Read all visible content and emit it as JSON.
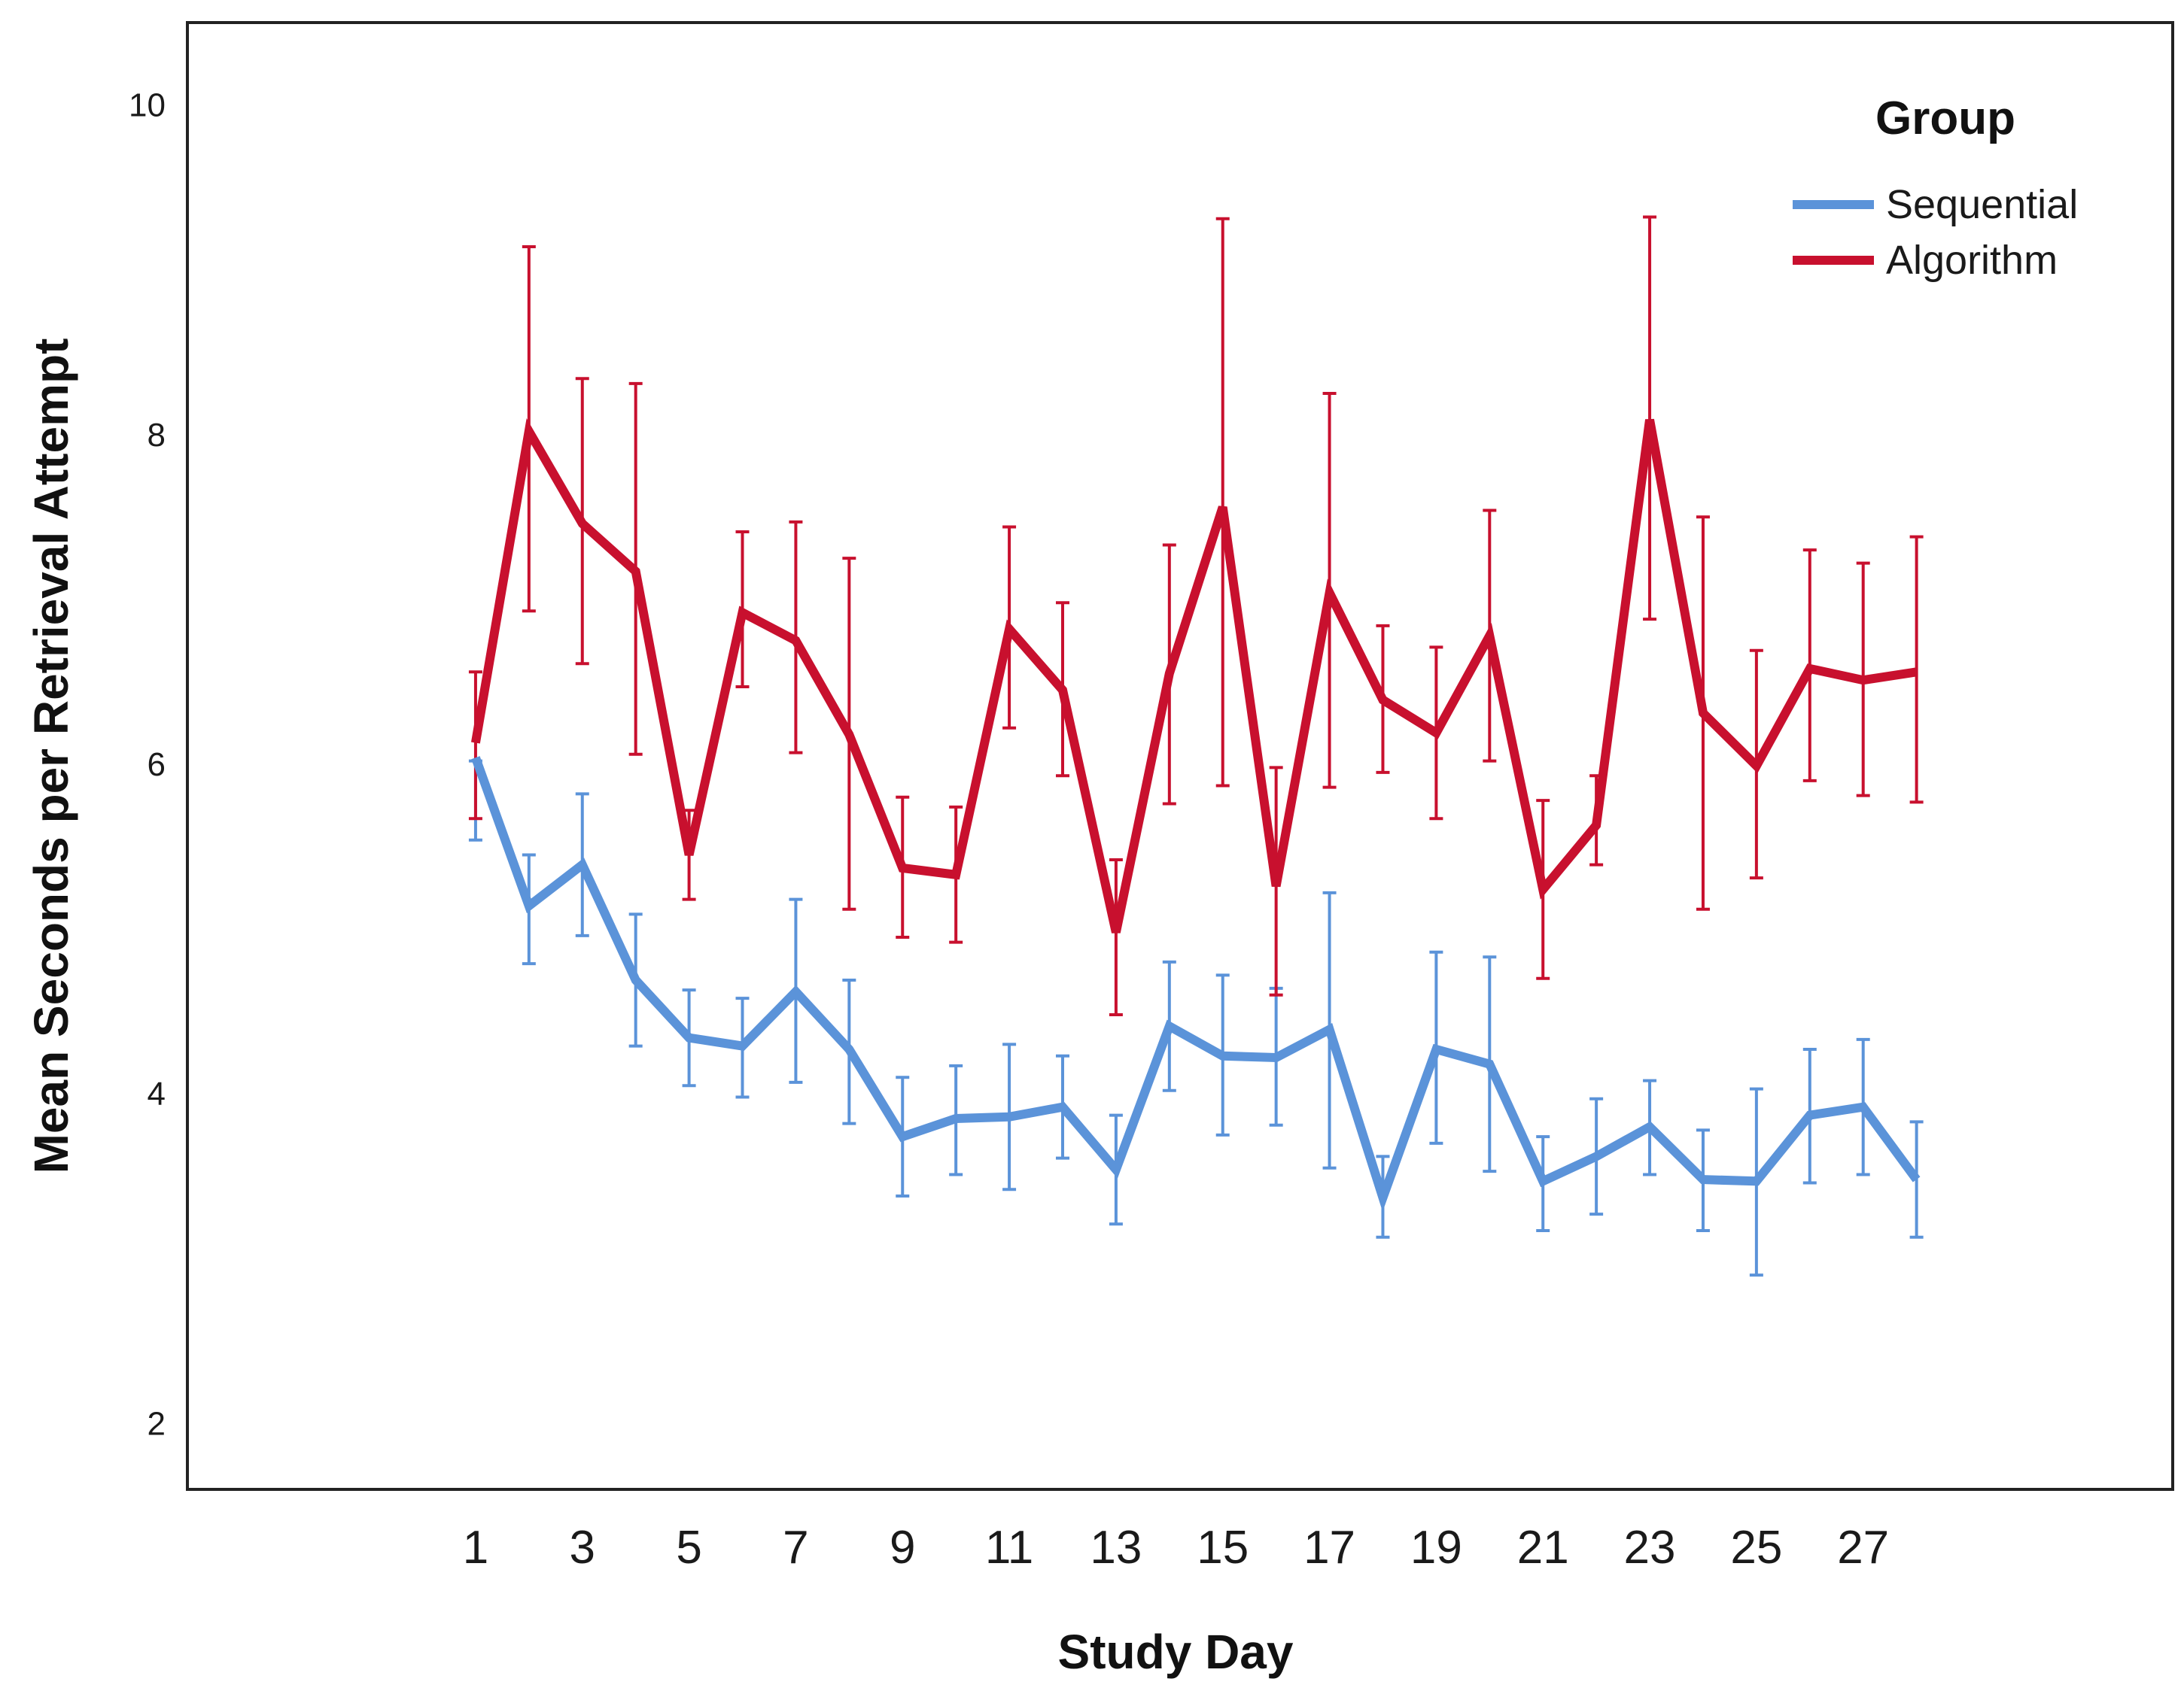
{
  "chart_data": {
    "type": "line",
    "title": "",
    "xlabel": "Study Day",
    "ylabel": "Mean Seconds per Retrieval Attempt",
    "x": [
      1,
      2,
      3,
      4,
      5,
      6,
      7,
      8,
      9,
      10,
      11,
      12,
      13,
      14,
      15,
      16,
      17,
      18,
      19,
      20,
      21,
      22,
      23,
      24,
      25,
      26,
      27,
      28
    ],
    "xlim": [
      -4.4,
      32.8
    ],
    "ylim": [
      1.6,
      10.5
    ],
    "x_ticks": [
      1,
      3,
      5,
      7,
      9,
      11,
      13,
      15,
      17,
      19,
      21,
      23,
      25,
      27
    ],
    "y_ticks": [
      2,
      4,
      6,
      8,
      10
    ],
    "grid": false,
    "error_bars": true,
    "legend": {
      "title": "Group",
      "position": "top-right"
    },
    "series": [
      {
        "name": "Sequential",
        "color": "#5b93d9",
        "values": [
          6.04,
          5.14,
          5.39,
          4.69,
          4.34,
          4.29,
          4.62,
          4.27,
          3.74,
          3.85,
          3.86,
          3.92,
          3.54,
          4.41,
          4.23,
          4.22,
          4.39,
          3.37,
          4.27,
          4.18,
          3.47,
          3.62,
          3.8,
          3.48,
          3.47,
          3.87,
          3.92,
          3.48
        ],
        "lower": [
          5.54,
          4.79,
          4.96,
          4.29,
          4.05,
          3.98,
          4.07,
          3.82,
          3.38,
          3.51,
          3.42,
          3.61,
          3.21,
          4.02,
          3.75,
          3.81,
          3.55,
          3.13,
          3.7,
          3.53,
          3.17,
          3.27,
          3.51,
          3.17,
          2.9,
          3.46,
          3.51,
          3.13
        ],
        "upper": [
          6.02,
          5.45,
          5.82,
          5.09,
          4.63,
          4.58,
          5.18,
          4.69,
          4.1,
          4.17,
          4.3,
          4.23,
          3.87,
          4.8,
          4.72,
          4.64,
          5.22,
          3.62,
          4.86,
          4.83,
          3.74,
          3.97,
          4.08,
          3.78,
          4.03,
          4.27,
          4.33,
          3.83
        ]
      },
      {
        "name": "Algorithm",
        "color": "#c8102e",
        "values": [
          6.13,
          8.02,
          7.46,
          7.17,
          5.45,
          6.92,
          6.75,
          6.18,
          5.37,
          5.33,
          6.82,
          6.45,
          4.98,
          6.55,
          7.56,
          5.26,
          7.04,
          6.39,
          6.19,
          6.78,
          5.24,
          5.63,
          8.09,
          6.31,
          5.99,
          6.58,
          6.51,
          6.56
        ],
        "lower": [
          5.67,
          6.93,
          6.61,
          6.06,
          5.18,
          6.47,
          6.07,
          5.12,
          4.95,
          4.92,
          6.22,
          5.93,
          4.48,
          5.76,
          5.87,
          4.6,
          5.86,
          5.95,
          5.67,
          6.02,
          4.7,
          5.39,
          6.88,
          5.12,
          5.31,
          5.9,
          5.81,
          5.77
        ],
        "upper": [
          6.56,
          9.14,
          8.34,
          8.31,
          5.72,
          7.41,
          7.47,
          7.25,
          5.8,
          5.74,
          7.44,
          6.98,
          5.42,
          7.33,
          9.31,
          5.98,
          8.25,
          6.84,
          6.71,
          7.54,
          5.78,
          5.93,
          9.32,
          7.5,
          6.69,
          7.3,
          7.22,
          7.38
        ]
      }
    ]
  }
}
